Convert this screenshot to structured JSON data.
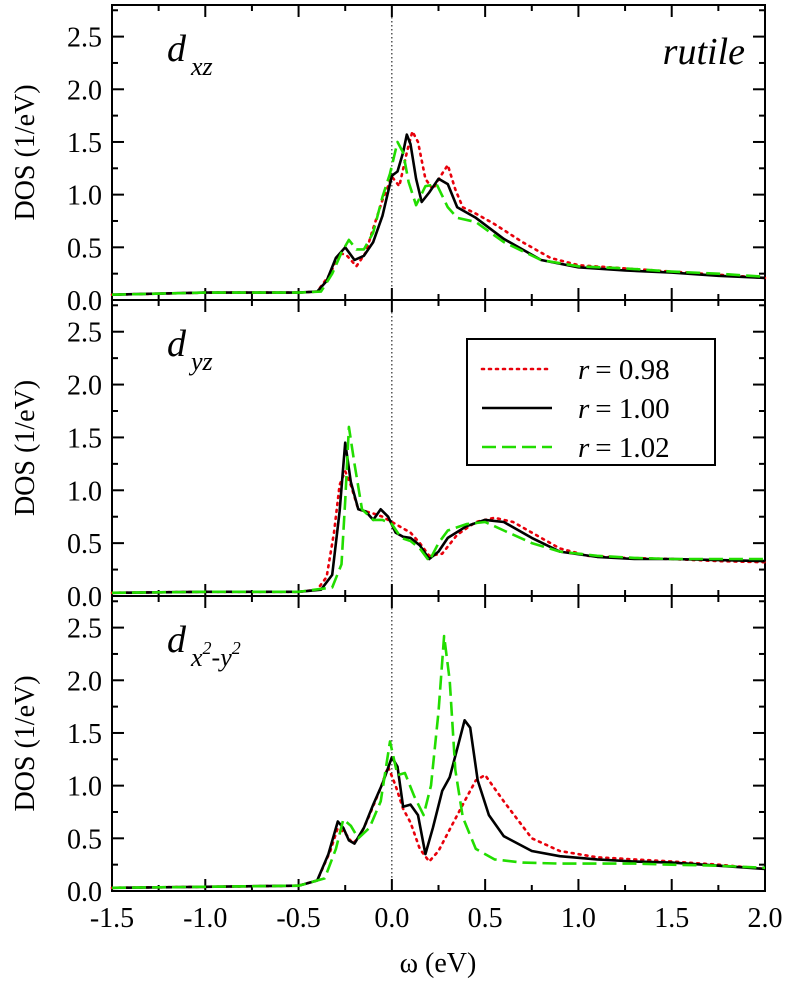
{
  "chart_data": {
    "type": "line",
    "xlabel": "ω (eV)",
    "ylabel": "DOS (1/eV)",
    "xlim": [
      -1.5,
      2.0
    ],
    "ylim": [
      0.0,
      2.8
    ],
    "xticks": [
      "-1.5",
      "-1.0",
      "-0.5",
      "0.0",
      "0.5",
      "1.0",
      "1.5",
      "2.0"
    ],
    "yticks": [
      "0.0",
      "0.5",
      "1.0",
      "1.5",
      "2.0",
      "2.5"
    ],
    "annotation": "rutile",
    "colors": {
      "r098": "#e8000b",
      "r100": "#000000",
      "r102": "#22dd00"
    },
    "legend": {
      "placement": "panel-2 top-right",
      "entries": [
        {
          "var": "r",
          "value": "= 0.98",
          "style": "dotted",
          "color": "#e8000b"
        },
        {
          "var": "r",
          "value": "= 1.00",
          "style": "solid",
          "color": "#000000"
        },
        {
          "var": "r",
          "value": "= 1.02",
          "style": "dashed",
          "color": "#22dd00"
        }
      ]
    },
    "panels": [
      {
        "label_main": "d",
        "label_sub": "xz",
        "label_sub_parts": [
          "xz"
        ],
        "series": [
          {
            "name": "r = 0.98",
            "x": [
              -1.5,
              -1.0,
              -0.5,
              -0.4,
              -0.33,
              -0.28,
              -0.24,
              -0.19,
              -0.14,
              -0.1,
              -0.05,
              0.0,
              0.04,
              0.08,
              0.11,
              0.14,
              0.18,
              0.22,
              0.27,
              0.3,
              0.34,
              0.38,
              0.45,
              0.55,
              0.7,
              0.85,
              1.0,
              1.25,
              1.5,
              1.75,
              2.0
            ],
            "y": [
              0.05,
              0.07,
              0.07,
              0.08,
              0.25,
              0.45,
              0.42,
              0.32,
              0.45,
              0.68,
              0.95,
              1.17,
              1.08,
              1.4,
              1.6,
              1.5,
              1.15,
              1.05,
              1.2,
              1.28,
              1.05,
              0.88,
              0.82,
              0.72,
              0.55,
              0.4,
              0.33,
              0.3,
              0.27,
              0.24,
              0.21
            ]
          },
          {
            "name": "r = 1.00",
            "x": [
              -1.5,
              -1.0,
              -0.5,
              -0.4,
              -0.35,
              -0.3,
              -0.25,
              -0.2,
              -0.15,
              -0.1,
              -0.05,
              0.0,
              0.03,
              0.06,
              0.08,
              0.1,
              0.13,
              0.16,
              0.2,
              0.25,
              0.3,
              0.35,
              0.45,
              0.6,
              0.8,
              1.0,
              1.25,
              1.5,
              1.75,
              2.0
            ],
            "y": [
              0.05,
              0.07,
              0.07,
              0.08,
              0.18,
              0.4,
              0.5,
              0.38,
              0.42,
              0.55,
              0.8,
              1.18,
              1.22,
              1.4,
              1.57,
              1.48,
              1.15,
              0.93,
              1.02,
              1.15,
              1.1,
              0.88,
              0.78,
              0.58,
              0.38,
              0.31,
              0.28,
              0.26,
              0.23,
              0.21
            ]
          },
          {
            "name": "r = 1.02",
            "x": [
              -1.5,
              -1.0,
              -0.5,
              -0.38,
              -0.32,
              -0.27,
              -0.23,
              -0.19,
              -0.15,
              -0.1,
              -0.05,
              -0.01,
              0.03,
              0.06,
              0.09,
              0.13,
              0.18,
              0.24,
              0.3,
              0.35,
              0.45,
              0.6,
              0.8,
              1.0,
              1.25,
              1.5,
              1.75,
              2.0
            ],
            "y": [
              0.05,
              0.07,
              0.07,
              0.08,
              0.25,
              0.45,
              0.57,
              0.48,
              0.48,
              0.64,
              0.98,
              1.2,
              1.5,
              1.4,
              1.12,
              0.9,
              1.08,
              1.1,
              0.88,
              0.78,
              0.74,
              0.55,
              0.38,
              0.32,
              0.3,
              0.27,
              0.25,
              0.22
            ]
          }
        ]
      },
      {
        "label_main": "d",
        "label_sub": "yz",
        "label_sub_parts": [
          "yz"
        ],
        "series": [
          {
            "name": "r = 0.98",
            "x": [
              -1.5,
              -1.0,
              -0.5,
              -0.4,
              -0.35,
              -0.31,
              -0.28,
              -0.25,
              -0.22,
              -0.18,
              -0.1,
              -0.05,
              0.0,
              0.05,
              0.1,
              0.15,
              0.2,
              0.27,
              0.35,
              0.45,
              0.55,
              0.65,
              0.75,
              0.9,
              1.05,
              1.25,
              1.5,
              1.75,
              2.0
            ],
            "y": [
              0.03,
              0.04,
              0.04,
              0.06,
              0.18,
              0.6,
              1.05,
              1.18,
              1.05,
              0.82,
              0.78,
              0.75,
              0.7,
              0.65,
              0.6,
              0.5,
              0.38,
              0.4,
              0.58,
              0.7,
              0.74,
              0.7,
              0.6,
              0.45,
              0.38,
              0.36,
              0.35,
              0.33,
              0.32
            ]
          },
          {
            "name": "r = 1.00",
            "x": [
              -1.5,
              -1.0,
              -0.5,
              -0.38,
              -0.32,
              -0.28,
              -0.25,
              -0.22,
              -0.18,
              -0.14,
              -0.1,
              -0.06,
              -0.02,
              0.02,
              0.06,
              0.1,
              0.15,
              0.2,
              0.25,
              0.3,
              0.4,
              0.5,
              0.6,
              0.75,
              0.9,
              1.1,
              1.3,
              1.5,
              1.75,
              2.0
            ],
            "y": [
              0.03,
              0.04,
              0.04,
              0.06,
              0.2,
              0.8,
              1.45,
              1.08,
              0.82,
              0.8,
              0.72,
              0.82,
              0.75,
              0.6,
              0.56,
              0.55,
              0.48,
              0.35,
              0.42,
              0.55,
              0.66,
              0.72,
              0.7,
              0.55,
              0.42,
              0.37,
              0.35,
              0.35,
              0.34,
              0.33
            ]
          },
          {
            "name": "r = 1.02",
            "x": [
              -1.5,
              -1.0,
              -0.5,
              -0.32,
              -0.27,
              -0.25,
              -0.23,
              -0.2,
              -0.16,
              -0.1,
              -0.05,
              0.0,
              0.05,
              0.1,
              0.15,
              0.2,
              0.25,
              0.3,
              0.4,
              0.5,
              0.6,
              0.75,
              0.9,
              1.1,
              1.3,
              1.5,
              1.75,
              2.0
            ],
            "y": [
              0.03,
              0.04,
              0.04,
              0.08,
              0.3,
              0.9,
              1.6,
              1.25,
              0.82,
              0.72,
              0.72,
              0.68,
              0.55,
              0.52,
              0.45,
              0.33,
              0.5,
              0.62,
              0.68,
              0.7,
              0.62,
              0.5,
              0.42,
              0.38,
              0.36,
              0.35,
              0.35,
              0.35
            ]
          }
        ]
      },
      {
        "label_main": "d",
        "label_sub": "x²-y²",
        "label_sub_parts": [
          "x",
          "2",
          "-y",
          "2"
        ],
        "series": [
          {
            "name": "r = 0.98",
            "x": [
              -1.5,
              -1.0,
              -0.5,
              -0.4,
              -0.33,
              -0.29,
              -0.25,
              -0.21,
              -0.17,
              -0.12,
              -0.06,
              -0.02,
              0.02,
              0.06,
              0.1,
              0.15,
              0.2,
              0.25,
              0.3,
              0.38,
              0.45,
              0.5,
              0.6,
              0.75,
              0.9,
              1.1,
              1.3,
              1.5,
              1.75,
              2.0
            ],
            "y": [
              0.03,
              0.04,
              0.05,
              0.1,
              0.38,
              0.6,
              0.55,
              0.45,
              0.52,
              0.72,
              0.98,
              1.18,
              1.0,
              0.78,
              0.65,
              0.4,
              0.28,
              0.38,
              0.55,
              0.82,
              1.05,
              1.1,
              0.85,
              0.5,
              0.38,
              0.32,
              0.3,
              0.28,
              0.25,
              0.21
            ]
          },
          {
            "name": "r = 1.00",
            "x": [
              -1.5,
              -1.0,
              -0.5,
              -0.4,
              -0.34,
              -0.29,
              -0.26,
              -0.23,
              -0.2,
              -0.15,
              -0.1,
              -0.05,
              0.0,
              0.03,
              0.06,
              0.1,
              0.14,
              0.18,
              0.22,
              0.27,
              0.31,
              0.35,
              0.39,
              0.42,
              0.46,
              0.52,
              0.6,
              0.75,
              0.9,
              1.1,
              1.3,
              1.5,
              1.75,
              2.0
            ],
            "y": [
              0.03,
              0.04,
              0.05,
              0.1,
              0.35,
              0.66,
              0.6,
              0.48,
              0.45,
              0.6,
              0.82,
              1.02,
              1.27,
              1.18,
              0.8,
              0.82,
              0.72,
              0.35,
              0.6,
              0.95,
              1.08,
              1.35,
              1.62,
              1.55,
              1.05,
              0.72,
              0.52,
              0.38,
              0.33,
              0.3,
              0.28,
              0.27,
              0.24,
              0.21
            ]
          },
          {
            "name": "r = 1.02",
            "x": [
              -1.5,
              -1.0,
              -0.5,
              -0.36,
              -0.3,
              -0.26,
              -0.22,
              -0.18,
              -0.12,
              -0.06,
              -0.01,
              0.03,
              0.07,
              0.12,
              0.17,
              0.21,
              0.25,
              0.28,
              0.31,
              0.34,
              0.38,
              0.45,
              0.55,
              0.7,
              0.9,
              1.1,
              1.3,
              1.5,
              1.75,
              2.0
            ],
            "y": [
              0.03,
              0.04,
              0.05,
              0.12,
              0.4,
              0.68,
              0.62,
              0.5,
              0.6,
              0.85,
              1.42,
              1.1,
              1.12,
              0.9,
              0.72,
              1.0,
              1.7,
              2.42,
              2.0,
              1.15,
              0.7,
              0.4,
              0.3,
              0.27,
              0.26,
              0.26,
              0.26,
              0.25,
              0.24,
              0.22
            ]
          }
        ]
      }
    ]
  }
}
